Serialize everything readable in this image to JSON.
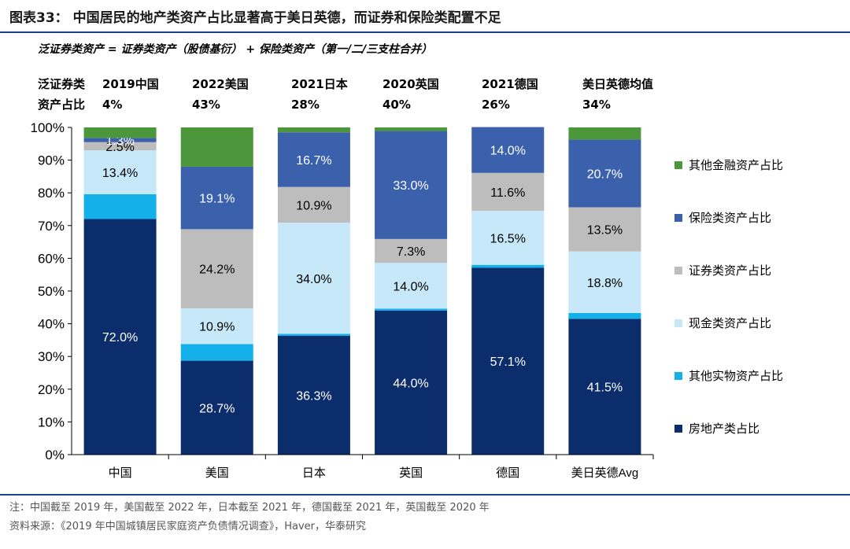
{
  "title": "图表33：  中国居民的地产类资产占比显著高于美日英德，而证券和保险类配置不足",
  "subtitle": "泛证券类资产 = 证券类资产（股债基衍） + 保险类资产（第一/二/三支柱合并）",
  "header_row": {
    "label_line1": "泛证券类",
    "label_line2": "资产占比",
    "items": [
      {
        "name": "2019中国",
        "value": "4%"
      },
      {
        "name": "2022美国",
        "value": "43%"
      },
      {
        "name": "2021日本",
        "value": "28%"
      },
      {
        "name": "2020英国",
        "value": "40%"
      },
      {
        "name": "2021德国",
        "value": "26%"
      },
      {
        "name": "美日英德均值",
        "value": "34%"
      }
    ]
  },
  "chart_data": {
    "type": "bar",
    "stacked": true,
    "categories": [
      "中国",
      "美国",
      "日本",
      "英国",
      "德国",
      "美日英德Avg"
    ],
    "ylim": [
      0,
      100
    ],
    "yticks": [
      "0%",
      "10%",
      "20%",
      "30%",
      "40%",
      "50%",
      "60%",
      "70%",
      "80%",
      "90%",
      "100%"
    ],
    "grid": false,
    "legend_position": "right",
    "series": [
      {
        "name": "房地产类占比",
        "color": "#0c2d6b",
        "label_color": "#ffffff",
        "values": [
          72.0,
          28.7,
          36.3,
          44.0,
          57.1,
          41.5
        ],
        "labels": [
          "72.0%",
          "28.7%",
          "36.3%",
          "44.0%",
          "57.1%",
          "41.5%"
        ]
      },
      {
        "name": "其他实物资产占比",
        "color": "#13b0ea",
        "label_color": "#000000",
        "values": [
          7.6,
          5.1,
          0.6,
          0.6,
          0.9,
          1.8
        ],
        "labels": [
          "",
          "",
          "",
          "",
          "",
          ""
        ]
      },
      {
        "name": "现金类资产占比",
        "color": "#c7e8f8",
        "label_color": "#000000",
        "values": [
          13.4,
          10.9,
          34.0,
          14.0,
          16.5,
          18.8
        ],
        "labels": [
          "13.4%",
          "10.9%",
          "34.0%",
          "14.0%",
          "16.5%",
          "18.8%"
        ]
      },
      {
        "name": "证券类资产占比",
        "color": "#bdbdbd",
        "label_color": "#000000",
        "values": [
          2.5,
          24.2,
          10.9,
          7.3,
          11.6,
          13.5
        ],
        "labels": [
          "2.5%",
          "24.2%",
          "10.9%",
          "7.3%",
          "11.6%",
          "13.5%"
        ]
      },
      {
        "name": "保险类资产占比",
        "color": "#3b61ad",
        "label_color": "#ffffff",
        "values": [
          1.3,
          19.1,
          16.7,
          33.0,
          14.0,
          20.7
        ],
        "labels": [
          "1.3%",
          "19.1%",
          "16.7%",
          "33.0%",
          "14.0%",
          "20.7%"
        ]
      },
      {
        "name": "其他金融资产占比",
        "color": "#4c963b",
        "label_color": "#ffffff",
        "values": [
          3.2,
          12.0,
          1.5,
          1.1,
          0.0,
          3.7
        ],
        "labels": [
          "",
          "",
          "",
          "",
          "",
          ""
        ]
      }
    ],
    "legend_order": [
      "其他金融资产占比",
      "保险类资产占比",
      "证券类资产占比",
      "现金类资产占比",
      "其他实物资产占比",
      "房地产类占比"
    ]
  },
  "note_line1": "注：中国截至 2019 年，美国截至 2022 年，日本截至 2021 年，德国截至 2021 年，英国截至 2020 年",
  "note_line2": "资料来源：《2019 年中国城镇居民家庭资产负债情况调查》，Haver，华泰研究"
}
